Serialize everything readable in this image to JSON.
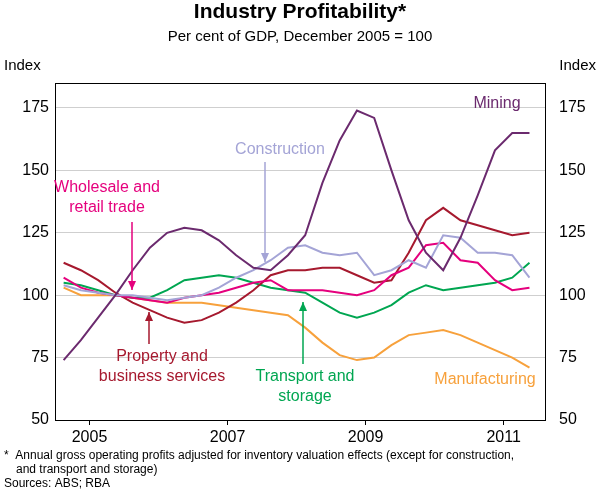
{
  "chart_data": {
    "type": "line",
    "title": "Industry Profitability*",
    "subtitle": "Per cent of GDP, December 2005 = 100",
    "y_label": "Index",
    "footnote": "*  Annual gross operating profits adjusted for inventory valuation effects (except for construction, and transport and storage)",
    "sources": "Sources: ABS; RBA",
    "x": [
      2004.625,
      2004.875,
      2005.125,
      2005.375,
      2005.625,
      2005.875,
      2006.125,
      2006.375,
      2006.625,
      2006.875,
      2007.125,
      2007.375,
      2007.625,
      2007.875,
      2008.125,
      2008.375,
      2008.625,
      2008.875,
      2009.125,
      2009.375,
      2009.625,
      2009.875,
      2010.125,
      2010.375,
      2010.625,
      2010.875,
      2011.125,
      2011.375
    ],
    "xlim": [
      2004.5,
      2011.6
    ],
    "xticks": [
      2005,
      2007,
      2009,
      2011
    ],
    "ylim": [
      50,
      185
    ],
    "yticks": [
      50,
      75,
      100,
      125,
      150,
      175
    ],
    "y2lim": [
      50,
      185
    ],
    "y2ticks": [
      50,
      75,
      100,
      125,
      150,
      175
    ],
    "grid": true,
    "series": [
      {
        "name": "Mining",
        "color": "#6b2a6e",
        "values": [
          74,
          82,
          91,
          100,
          110,
          119,
          125,
          127,
          126,
          122,
          116,
          111,
          110,
          116,
          124,
          145,
          162,
          174,
          171,
          150,
          130,
          117,
          110,
          123,
          140,
          158,
          165,
          165
        ]
      },
      {
        "name": "Construction",
        "color": "#a4a4d6",
        "values": [
          104,
          102,
          101,
          100,
          100,
          99,
          98,
          99,
          100,
          103,
          107,
          110,
          114,
          119,
          120,
          117,
          116,
          117,
          108,
          110,
          114,
          111,
          124,
          123,
          117,
          117,
          116,
          107
        ]
      },
      {
        "name": "Wholesale and retail trade",
        "color": "#e5007d",
        "values": [
          107,
          103,
          101,
          100,
          99,
          98,
          97,
          99,
          100,
          101,
          103,
          105,
          106,
          102,
          102,
          102,
          101,
          100,
          102,
          108,
          111,
          120,
          121,
          114,
          113,
          106,
          102,
          103
        ]
      },
      {
        "name": "Property and business services",
        "color": "#a6192e",
        "values": [
          113,
          110,
          106,
          101,
          97,
          94,
          91,
          89,
          90,
          93,
          97,
          102,
          108,
          110,
          110,
          111,
          111,
          108,
          105,
          106,
          117,
          130,
          135,
          130,
          128,
          126,
          124,
          125
        ]
      },
      {
        "name": "Transport and storage",
        "color": "#00a651",
        "values": [
          105,
          104,
          102,
          100,
          99,
          99,
          102,
          106,
          107,
          108,
          107,
          105,
          103,
          102,
          101,
          97,
          93,
          91,
          93,
          96,
          101,
          104,
          102,
          103,
          104,
          105,
          107,
          113
        ]
      },
      {
        "name": "Manufacturing",
        "color": "#f7a13c",
        "values": [
          103,
          100,
          100,
          100,
          99,
          98,
          97,
          97,
          97,
          96,
          95,
          94,
          93,
          92,
          87,
          81,
          76,
          74,
          75,
          80,
          84,
          85,
          86,
          84,
          81,
          78,
          75,
          71
        ]
      }
    ]
  }
}
